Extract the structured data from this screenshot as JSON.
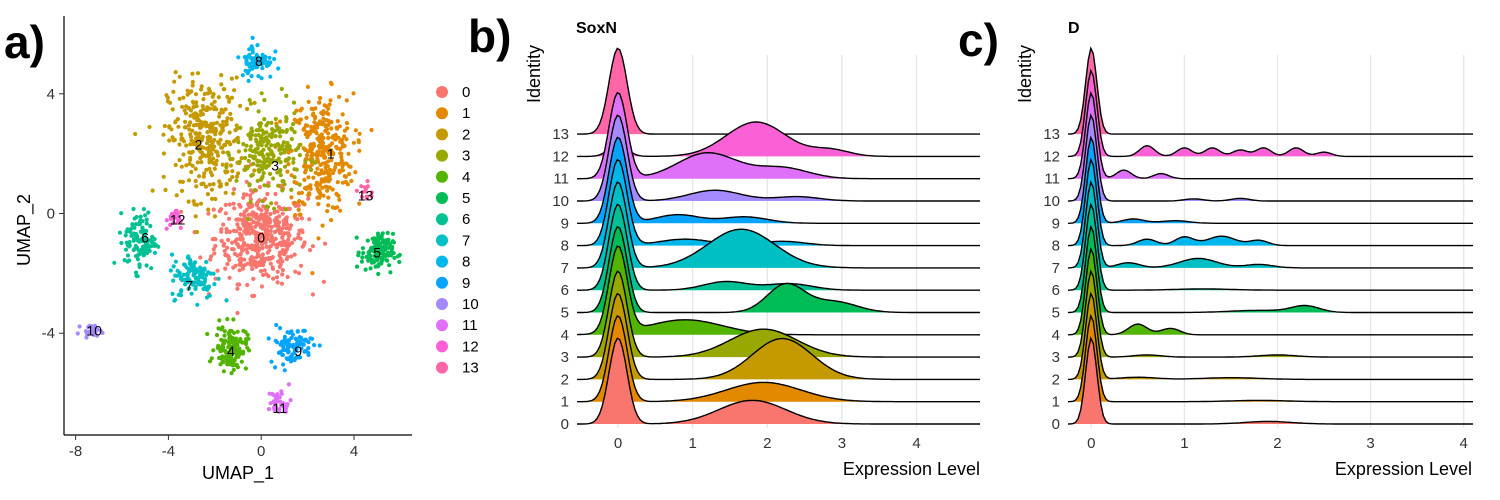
{
  "panels": {
    "a": "a)",
    "b": "b)",
    "c": "c)"
  },
  "palette": [
    "#F8766D",
    "#E38900",
    "#C49A00",
    "#99A800",
    "#53B400",
    "#00BC56",
    "#00C094",
    "#00BFC4",
    "#00B6EB",
    "#06A4FF",
    "#A58AFF",
    "#DF70F8",
    "#FB61D7",
    "#FF66A8"
  ],
  "chart_data": [
    {
      "id": "umap",
      "type": "scatter",
      "title": "",
      "xlabel": "UMAP_1",
      "ylabel": "UMAP_2",
      "xlim": [
        -8.5,
        6.5
      ],
      "ylim": [
        -7.4,
        6.6
      ],
      "xticks": [
        -8,
        -4,
        0,
        4
      ],
      "yticks": [
        -4,
        0,
        4
      ],
      "grid": false,
      "legend": {
        "position": "right",
        "entries": [
          "0",
          "1",
          "2",
          "3",
          "4",
          "5",
          "6",
          "7",
          "8",
          "9",
          "10",
          "11",
          "12",
          "13"
        ]
      },
      "clusters": [
        {
          "label": "0",
          "center": [
            0.0,
            -0.8
          ],
          "spread": [
            1.6,
            1.2
          ],
          "n": 450,
          "label_pos": [
            0.0,
            -0.8
          ]
        },
        {
          "label": "1",
          "center": [
            2.6,
            2.0
          ],
          "spread": [
            1.1,
            1.6
          ],
          "n": 330,
          "label_pos": [
            3.0,
            2.0
          ]
        },
        {
          "label": "2",
          "center": [
            -2.4,
            2.5
          ],
          "spread": [
            1.3,
            1.6
          ],
          "n": 330,
          "label_pos": [
            -2.7,
            2.3
          ]
        },
        {
          "label": "3",
          "center": [
            0.3,
            2.0
          ],
          "spread": [
            1.1,
            1.2
          ],
          "n": 220,
          "label_pos": [
            0.6,
            1.6
          ]
        },
        {
          "label": "4",
          "center": [
            -1.3,
            -4.5
          ],
          "spread": [
            0.55,
            0.6
          ],
          "n": 130,
          "label_pos": [
            -1.3,
            -4.6
          ]
        },
        {
          "label": "5",
          "center": [
            5.0,
            -1.3
          ],
          "spread": [
            0.55,
            0.5
          ],
          "n": 130,
          "label_pos": [
            5.0,
            -1.3
          ]
        },
        {
          "label": "6",
          "center": [
            -5.2,
            -0.9
          ],
          "spread": [
            0.55,
            0.8
          ],
          "n": 110,
          "label_pos": [
            -5.0,
            -0.8
          ]
        },
        {
          "label": "7",
          "center": [
            -2.9,
            -2.1
          ],
          "spread": [
            0.8,
            0.6
          ],
          "n": 110,
          "label_pos": [
            -3.1,
            -2.4
          ]
        },
        {
          "label": "8",
          "center": [
            -0.2,
            5.1
          ],
          "spread": [
            0.55,
            0.5
          ],
          "n": 70,
          "label_pos": [
            -0.1,
            5.1
          ]
        },
        {
          "label": "9",
          "center": [
            1.3,
            -4.4
          ],
          "spread": [
            0.75,
            0.5
          ],
          "n": 90,
          "label_pos": [
            1.6,
            -4.6
          ]
        },
        {
          "label": "10",
          "center": [
            -7.3,
            -3.9
          ],
          "spread": [
            0.35,
            0.13
          ],
          "n": 25,
          "label_pos": [
            -7.2,
            -3.9
          ]
        },
        {
          "label": "11",
          "center": [
            0.8,
            -6.3
          ],
          "spread": [
            0.4,
            0.35
          ],
          "n": 35,
          "label_pos": [
            0.8,
            -6.5
          ]
        },
        {
          "label": "12",
          "center": [
            -3.7,
            -0.2
          ],
          "spread": [
            0.3,
            0.3
          ],
          "n": 18,
          "label_pos": [
            -3.6,
            -0.2
          ]
        },
        {
          "label": "13",
          "center": [
            4.5,
            0.7
          ],
          "spread": [
            0.25,
            0.3
          ],
          "n": 14,
          "label_pos": [
            4.5,
            0.6
          ]
        }
      ]
    },
    {
      "id": "ridge_soxn",
      "type": "area",
      "title": "SoxN",
      "xlabel": "Expression Level",
      "ylabel": "Identity",
      "xlim": [
        -0.55,
        4.85
      ],
      "xticks": [
        0,
        1,
        2,
        3,
        4
      ],
      "grid": true,
      "categories": [
        "0",
        "1",
        "2",
        "3",
        "4",
        "5",
        "6",
        "7",
        "8",
        "9",
        "10",
        "11",
        "12",
        "13"
      ],
      "series": [
        {
          "name": "0",
          "components": [
            [
              0,
              0.12,
              2.0
            ],
            [
              1.8,
              0.45,
              0.55
            ]
          ]
        },
        {
          "name": "1",
          "components": [
            [
              0,
              0.12,
              2.0
            ],
            [
              1.95,
              0.5,
              0.45
            ]
          ]
        },
        {
          "name": "2",
          "components": [
            [
              0,
              0.12,
              2.0
            ],
            [
              2.2,
              0.4,
              0.95
            ]
          ]
        },
        {
          "name": "3",
          "components": [
            [
              0,
              0.12,
              2.0
            ],
            [
              1.95,
              0.45,
              0.65
            ]
          ]
        },
        {
          "name": "4",
          "components": [
            [
              0,
              0.12,
              2.0
            ],
            [
              0.9,
              0.5,
              0.35
            ]
          ]
        },
        {
          "name": "5",
          "components": [
            [
              0,
              0.12,
              2.0
            ],
            [
              2.25,
              0.25,
              0.65
            ],
            [
              2.9,
              0.3,
              0.25
            ]
          ]
        },
        {
          "name": "6",
          "components": [
            [
              0,
              0.12,
              2.0
            ],
            [
              1.45,
              0.3,
              0.2
            ],
            [
              2.3,
              0.3,
              0.15
            ]
          ]
        },
        {
          "name": "7",
          "components": [
            [
              0,
              0.12,
              2.0
            ],
            [
              1.65,
              0.45,
              0.9
            ]
          ]
        },
        {
          "name": "8",
          "components": [
            [
              0,
              0.12,
              2.0
            ],
            [
              0.9,
              0.35,
              0.15
            ],
            [
              2.2,
              0.3,
              0.1
            ]
          ]
        },
        {
          "name": "9",
          "components": [
            [
              0,
              0.12,
              2.0
            ],
            [
              0.8,
              0.3,
              0.2
            ],
            [
              1.7,
              0.3,
              0.15
            ]
          ]
        },
        {
          "name": "10",
          "components": [
            [
              0,
              0.12,
              2.0
            ],
            [
              1.3,
              0.35,
              0.25
            ],
            [
              2.4,
              0.3,
              0.1
            ]
          ]
        },
        {
          "name": "11",
          "components": [
            [
              0,
              0.12,
              2.0
            ],
            [
              1.2,
              0.4,
              0.6
            ],
            [
              2.2,
              0.35,
              0.25
            ]
          ]
        },
        {
          "name": "12",
          "components": [
            [
              0,
              0.12,
              0.3
            ],
            [
              1.85,
              0.4,
              0.8
            ],
            [
              2.85,
              0.25,
              0.15
            ]
          ]
        },
        {
          "name": "13",
          "components": [
            [
              0,
              0.12,
              2.0
            ]
          ]
        }
      ]
    },
    {
      "id": "ridge_d",
      "type": "area",
      "title": "D",
      "xlabel": "Expression Level",
      "ylabel": "Identity",
      "xlim": [
        -0.25,
        4.1
      ],
      "xticks": [
        0,
        1,
        2,
        3,
        4
      ],
      "grid": true,
      "categories": [
        "0",
        "1",
        "2",
        "3",
        "4",
        "5",
        "6",
        "7",
        "8",
        "9",
        "10",
        "11",
        "12",
        "13"
      ],
      "series": [
        {
          "name": "0",
          "components": [
            [
              0,
              0.06,
              2.0
            ],
            [
              1.9,
              0.25,
              0.06
            ]
          ]
        },
        {
          "name": "1",
          "components": [
            [
              0,
              0.06,
              2.0
            ],
            [
              1.8,
              0.3,
              0.03
            ]
          ]
        },
        {
          "name": "2",
          "components": [
            [
              0,
              0.06,
              2.0
            ],
            [
              0.5,
              0.2,
              0.05
            ],
            [
              1.5,
              0.3,
              0.04
            ]
          ]
        },
        {
          "name": "3",
          "components": [
            [
              0,
              0.06,
              2.0
            ],
            [
              0.6,
              0.15,
              0.05
            ],
            [
              2.0,
              0.2,
              0.05
            ]
          ]
        },
        {
          "name": "4",
          "components": [
            [
              0,
              0.06,
              2.0
            ],
            [
              0.5,
              0.1,
              0.25
            ],
            [
              0.85,
              0.1,
              0.15
            ]
          ]
        },
        {
          "name": "5",
          "components": [
            [
              0,
              0.06,
              2.0
            ],
            [
              2.3,
              0.15,
              0.15
            ],
            [
              1.8,
              0.3,
              0.05
            ]
          ]
        },
        {
          "name": "6",
          "components": [
            [
              0,
              0.06,
              2.0
            ],
            [
              1.2,
              0.3,
              0.03
            ]
          ]
        },
        {
          "name": "7",
          "components": [
            [
              0,
              0.06,
              2.0
            ],
            [
              0.4,
              0.12,
              0.12
            ],
            [
              1.15,
              0.2,
              0.22
            ],
            [
              1.8,
              0.15,
              0.08
            ]
          ]
        },
        {
          "name": "8",
          "components": [
            [
              0,
              0.06,
              2.0
            ],
            [
              0.6,
              0.1,
              0.15
            ],
            [
              1.0,
              0.1,
              0.2
            ],
            [
              1.4,
              0.15,
              0.22
            ],
            [
              1.8,
              0.1,
              0.12
            ]
          ]
        },
        {
          "name": "9",
          "components": [
            [
              0,
              0.06,
              2.0
            ],
            [
              0.45,
              0.12,
              0.1
            ],
            [
              0.9,
              0.15,
              0.06
            ]
          ]
        },
        {
          "name": "10",
          "components": [
            [
              0,
              0.06,
              2.0
            ],
            [
              1.1,
              0.1,
              0.05
            ],
            [
              1.6,
              0.1,
              0.06
            ]
          ]
        },
        {
          "name": "11",
          "components": [
            [
              0,
              0.06,
              2.0
            ],
            [
              0.35,
              0.08,
              0.2
            ],
            [
              0.75,
              0.08,
              0.12
            ]
          ]
        },
        {
          "name": "12",
          "components": [
            [
              0,
              0.06,
              2.0
            ],
            [
              0.6,
              0.08,
              0.25
            ],
            [
              1.0,
              0.08,
              0.2
            ],
            [
              1.3,
              0.08,
              0.2
            ],
            [
              1.6,
              0.08,
              0.15
            ],
            [
              1.85,
              0.08,
              0.2
            ],
            [
              2.2,
              0.08,
              0.2
            ],
            [
              2.5,
              0.08,
              0.1
            ]
          ]
        },
        {
          "name": "13",
          "components": [
            [
              0,
              0.06,
              2.0
            ]
          ]
        }
      ]
    }
  ]
}
